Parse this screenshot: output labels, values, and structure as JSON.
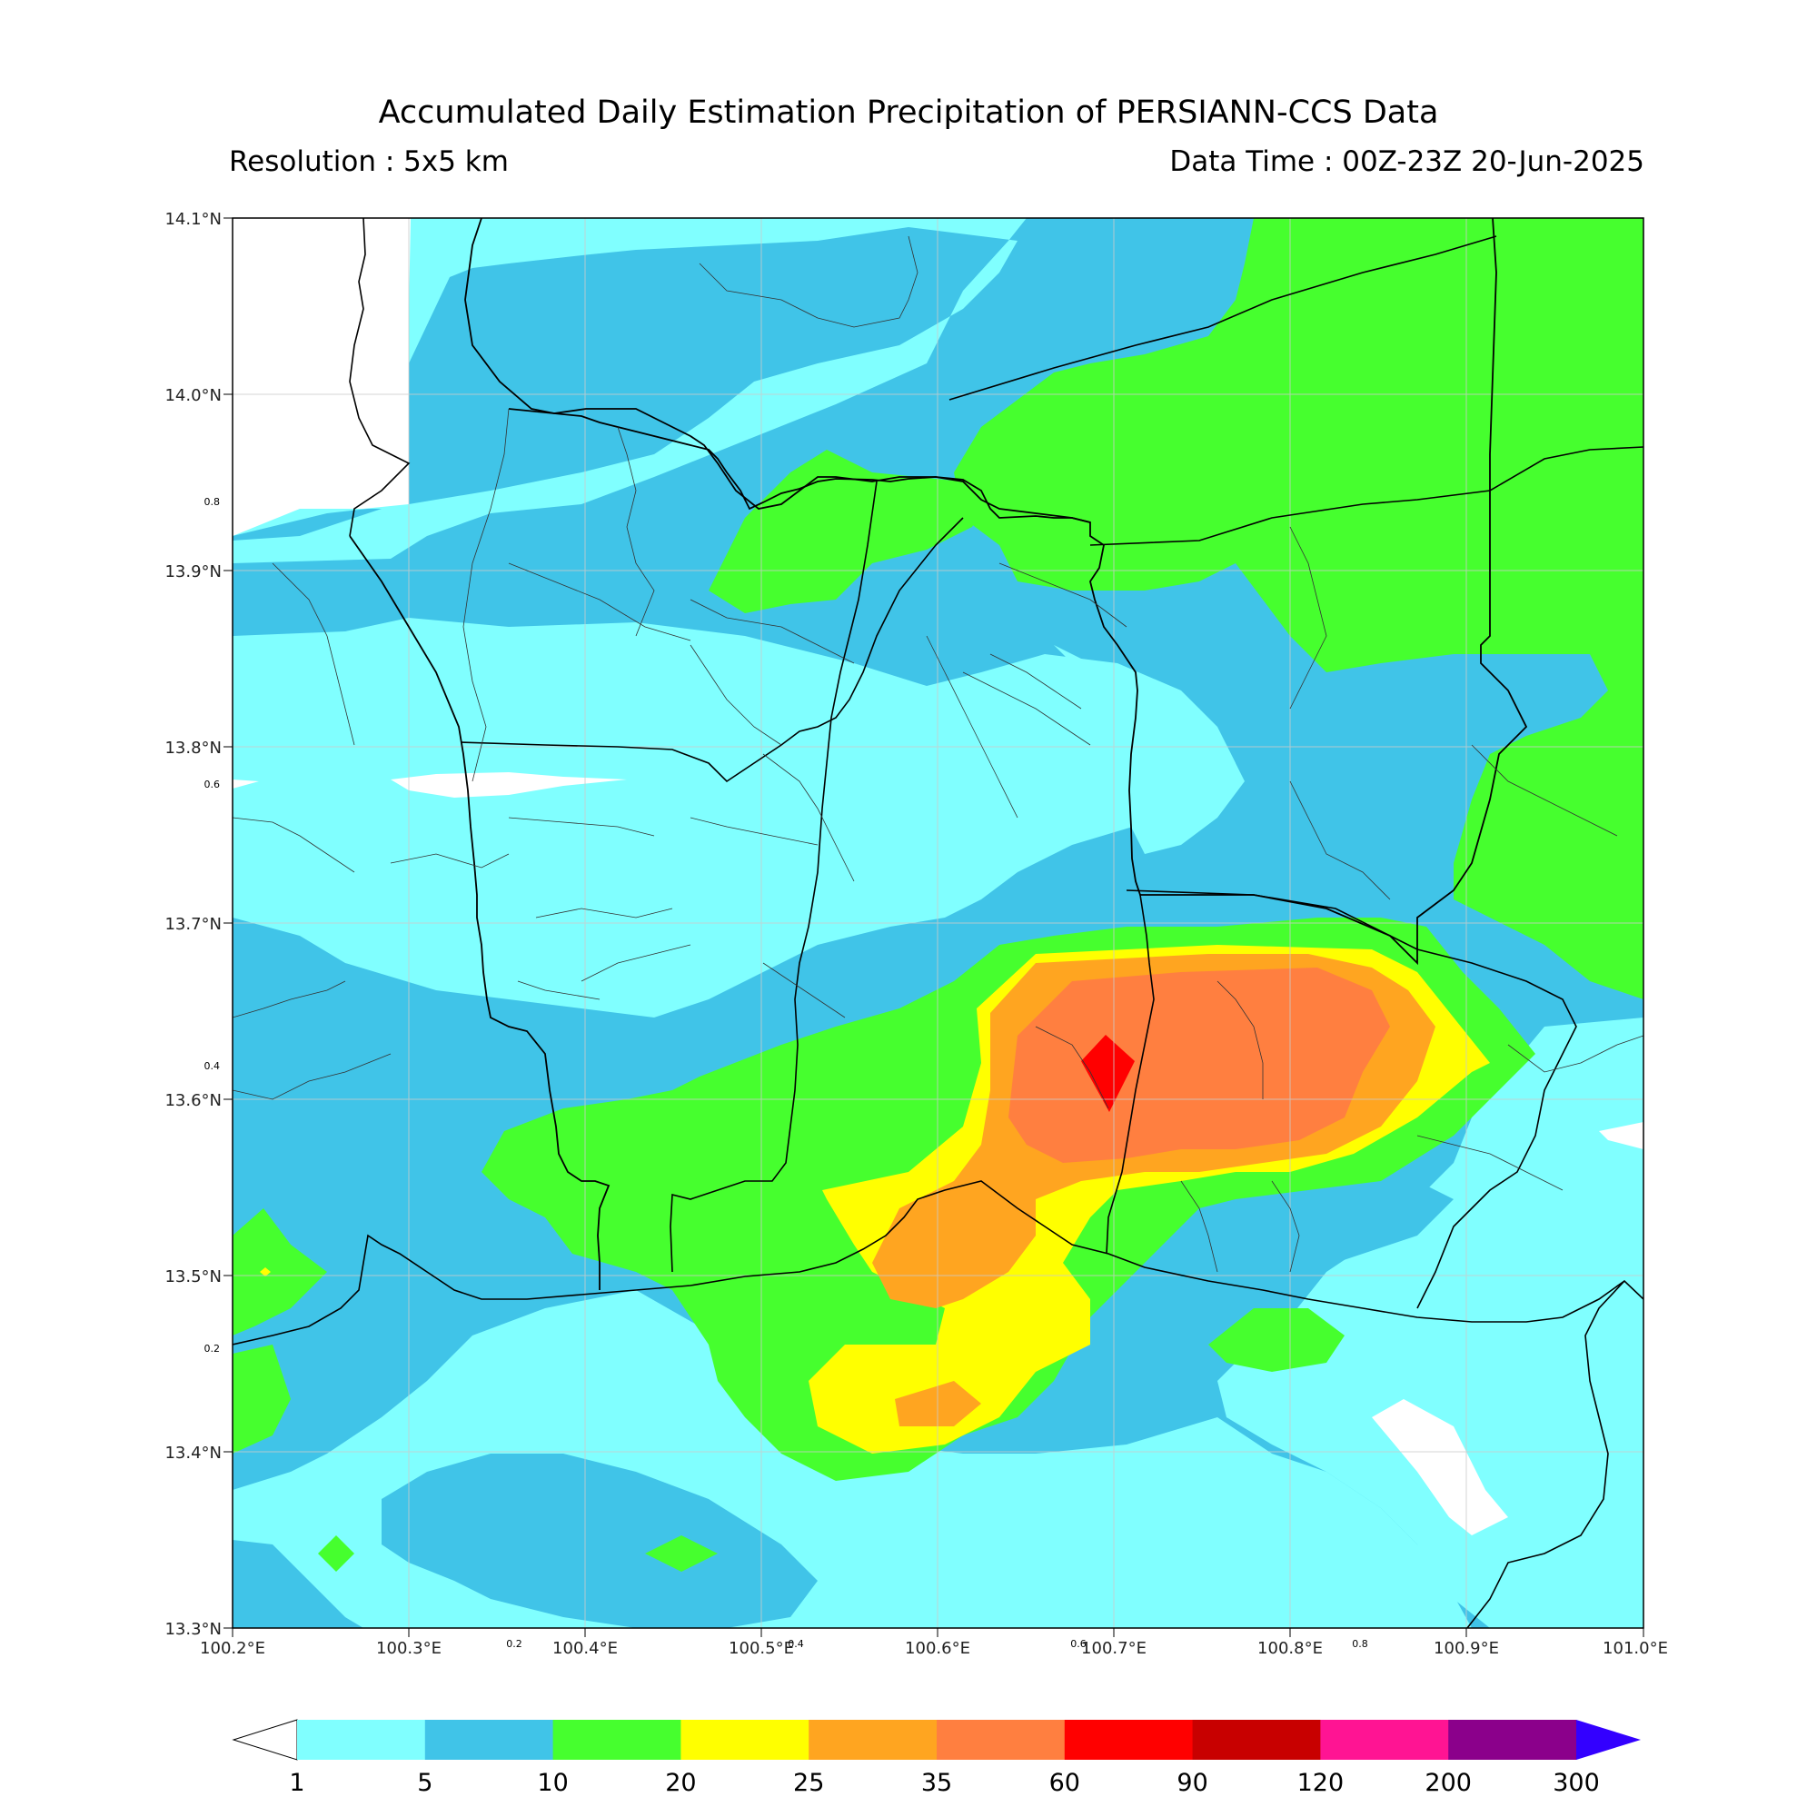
{
  "header": {
    "title": "Accumulated Daily Estimation Precipitation of PERSIANN-CCS Data",
    "resolution": "Resolution : 5x5 km",
    "data_time": "Data Time : 00Z-23Z 20-Jun-2025"
  },
  "map": {
    "lat_labels": [
      "14.1°N",
      "14.0°N",
      "13.9°N",
      "13.8°N",
      "13.7°N",
      "13.6°N",
      "13.5°N",
      "13.4°N",
      "13.3°N"
    ],
    "lon_labels": [
      "100.2°E",
      "100.3°E",
      "100.4°E",
      "100.5°E",
      "100.6°E",
      "100.7°E",
      "100.8°E",
      "100.9°E",
      "101.0°E"
    ],
    "secondary_left_labels": [
      "0.8",
      "0.6",
      "0.4",
      "0.2"
    ],
    "secondary_bottom_labels": [
      "0.2",
      "0.4",
      "0.6",
      "0.8"
    ],
    "lat_range": [
      13.3,
      14.1
    ],
    "lon_range": [
      100.2,
      101.0
    ],
    "grid": true
  },
  "colorbar": {
    "levels": [
      "1",
      "5",
      "10",
      "20",
      "25",
      "35",
      "60",
      "90",
      "120",
      "200",
      "300"
    ],
    "colors": [
      "#80ffff",
      "#40c4e8",
      "#46ff2e",
      "#ffff00",
      "#ffa520",
      "#ff7f40",
      "#ff0000",
      "#c80000",
      "#ff1493",
      "#8b008b"
    ],
    "under_color": "#ffffff",
    "over_color": "#3300ff"
  },
  "legend_colors": {
    "c1": "#80ffff",
    "c5": "#40c4e8",
    "c10": "#46ff2e",
    "c20": "#ffff00",
    "c25": "#ffa520",
    "c35": "#ff7f40",
    "c60": "#ff0000"
  }
}
